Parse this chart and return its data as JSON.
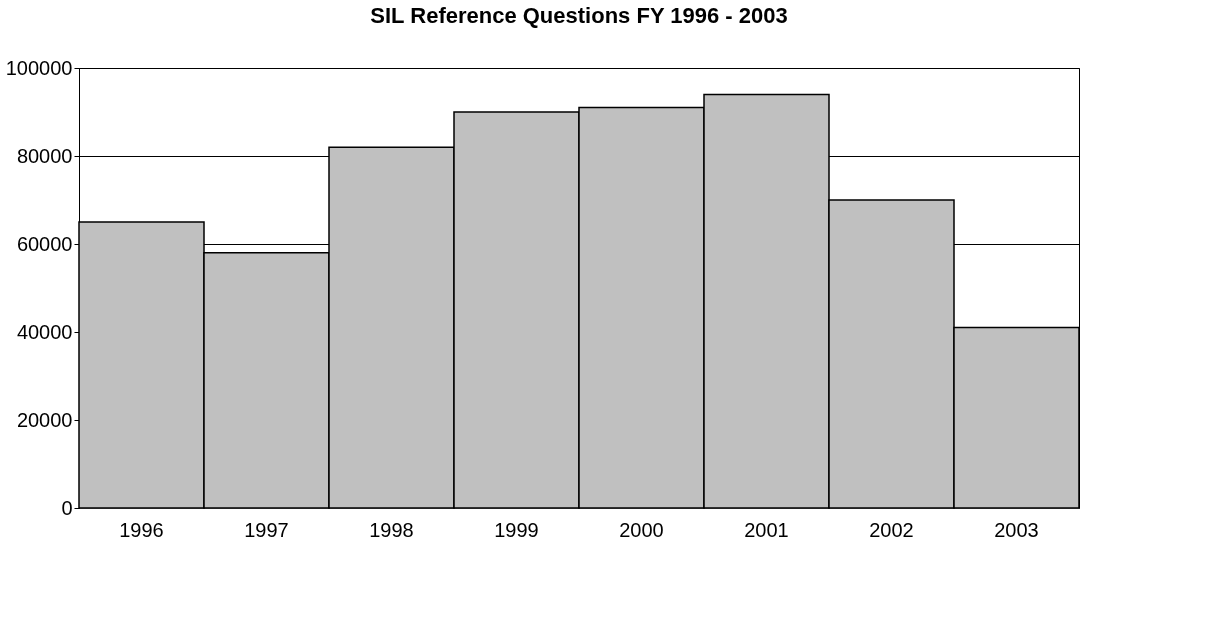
{
  "chart_data": {
    "type": "bar",
    "title": "SIL Reference Questions FY 1996 - 2003",
    "categories": [
      "1996",
      "1997",
      "1998",
      "1999",
      "2000",
      "2001",
      "2002",
      "2003"
    ],
    "values": [
      65000,
      58000,
      82000,
      90000,
      91000,
      94000,
      70000,
      41000
    ],
    "color": "#c0c0c0",
    "ylim": [
      0,
      100000
    ],
    "yticks": [
      0,
      20000,
      40000,
      60000,
      80000,
      100000
    ],
    "grid": "y"
  }
}
